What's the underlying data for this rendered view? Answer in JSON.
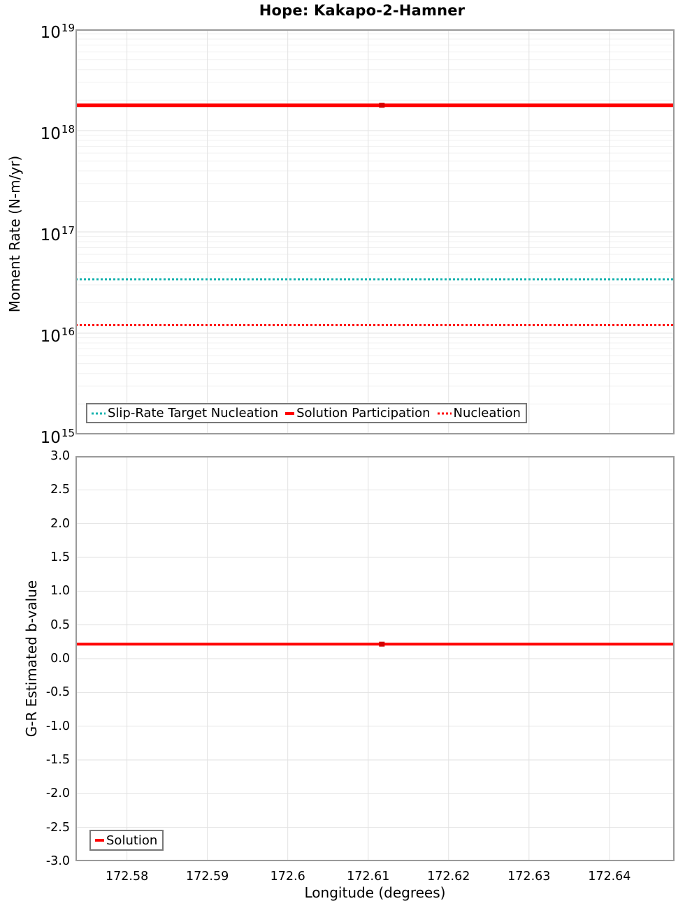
{
  "title": "Hope: Kakapo-2-Hamner",
  "x_axis": {
    "label": "Longitude (degrees)",
    "xlim": [
      172.5736,
      172.6481
    ],
    "ticks": [
      172.58,
      172.59,
      172.6,
      172.61,
      172.62,
      172.63,
      172.64
    ],
    "tick_labels": [
      "172.58",
      "172.59",
      "172.6",
      "172.61",
      "172.62",
      "172.63",
      "172.64"
    ]
  },
  "colors": {
    "solution_red": "#FF0000",
    "marker_dark_red": "#D40000",
    "slip_rate_teal": "#18B3AF",
    "grid_major": "#E2E2E2",
    "grid_minor": "#F0F0F0",
    "plot_border": "#9A9A9A",
    "legend_border": "#787878"
  },
  "chart_data": [
    {
      "type": "line",
      "title": "Hope: Kakapo-2-Hamner",
      "ylabel": "Moment Rate (N-m/yr)",
      "yscale": "log",
      "ylim": [
        1000000000000000.0,
        1e+19
      ],
      "ytick_exponents": [
        19,
        18,
        17,
        16,
        15
      ],
      "grid": true,
      "legend_position": "bottom-left",
      "x": [
        172.5736,
        172.6117,
        172.6481
      ],
      "series": [
        {
          "name": "Slip-Rate Target Nucleation",
          "color": "#18B3AF",
          "style": "dotted",
          "width": 3,
          "values": [
            3.4e+16,
            3.4e+16,
            3.4e+16
          ]
        },
        {
          "name": "Solution Participation",
          "color": "#FF0000",
          "style": "solid",
          "width": 5,
          "values": [
            1.78e+18,
            1.78e+18,
            1.78e+18
          ]
        },
        {
          "name": "Nucleation",
          "color": "#FF0000",
          "style": "dotted",
          "width": 3,
          "values": [
            1.2e+16,
            1.2e+16,
            1.2e+16
          ]
        }
      ],
      "marker": {
        "x": 172.6117,
        "series": "Solution Participation",
        "color": "#D40000"
      }
    },
    {
      "type": "line",
      "ylabel": "G-R Estimated b-value",
      "yscale": "linear",
      "ylim": [
        -3.0,
        3.0
      ],
      "ytick_labels": [
        "3.0",
        "2.5",
        "2.0",
        "1.5",
        "1.0",
        "0.5",
        "0.0",
        "-0.5",
        "-1.0",
        "-1.5",
        "-2.0",
        "-2.5",
        "-3.0"
      ],
      "grid": true,
      "legend_position": "bottom-left",
      "x": [
        172.5736,
        172.6117,
        172.6481
      ],
      "series": [
        {
          "name": "Solution",
          "color": "#FF0000",
          "style": "solid",
          "width": 4,
          "values": [
            0.215,
            0.215,
            0.215
          ]
        }
      ],
      "marker": {
        "x": 172.6117,
        "series": "Solution",
        "color": "#D40000"
      }
    }
  ]
}
